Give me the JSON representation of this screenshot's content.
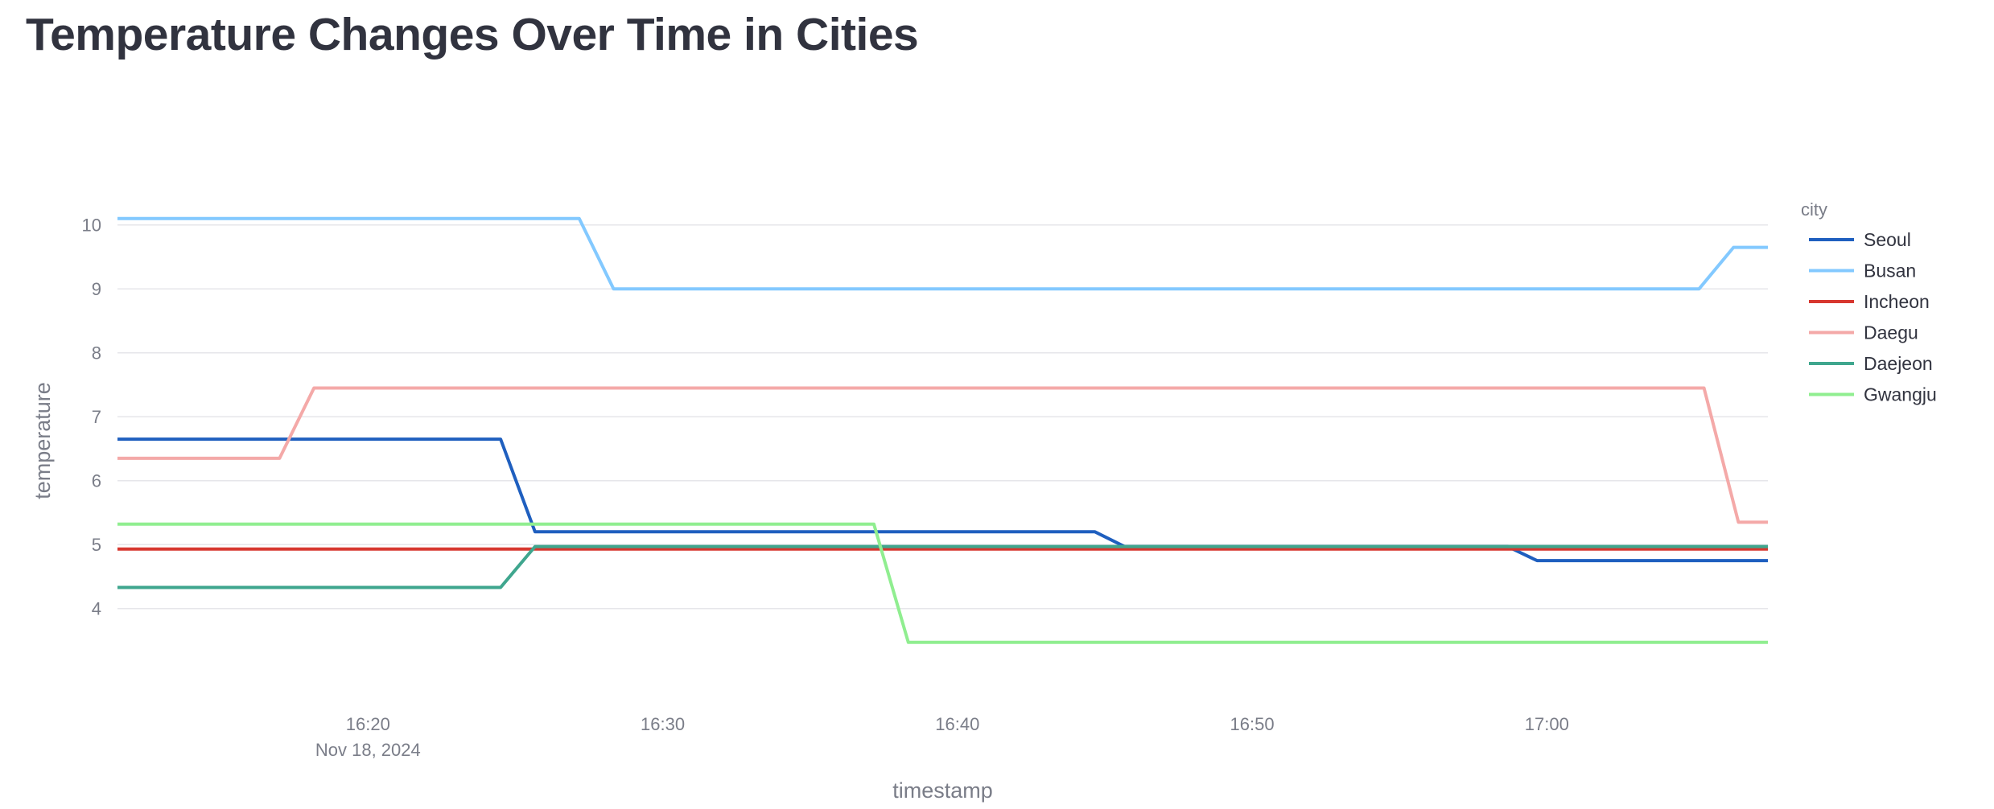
{
  "page": {
    "title": "Temperature Changes Over Time in Cities"
  },
  "chart_data": {
    "type": "line",
    "title": "Temperature Changes Over Time in Cities",
    "xlabel": "timestamp",
    "ylabel": "temperature",
    "x_axis_type": "time",
    "x_domain": [
      "2024-11-18T16:11:30",
      "2024-11-18T17:07:30"
    ],
    "x_ticks": [
      {
        "t": "2024-11-18T16:20",
        "label": "16:20",
        "sublabel": "Nov 18, 2024"
      },
      {
        "t": "2024-11-18T16:30",
        "label": "16:30",
        "sublabel": ""
      },
      {
        "t": "2024-11-18T16:40",
        "label": "16:40",
        "sublabel": ""
      },
      {
        "t": "2024-11-18T16:50",
        "label": "16:50",
        "sublabel": ""
      },
      {
        "t": "2024-11-18T17:00",
        "label": "17:00",
        "sublabel": ""
      }
    ],
    "ylim": [
      2.6,
      10.5
    ],
    "y_ticks": [
      4,
      5,
      6,
      7,
      8,
      9,
      10
    ],
    "grid": "horizontal",
    "legend": {
      "title": "city",
      "position": "right"
    },
    "series": [
      {
        "name": "Seoul",
        "color": "#1f5fbf",
        "x": [
          "16:11:30",
          "16:24:30",
          "16:25:40",
          "16:44:40",
          "16:45:40",
          "16:58:40",
          "16:59:40",
          "17:07:30"
        ],
        "y": [
          6.65,
          6.65,
          5.2,
          5.2,
          4.97,
          4.97,
          4.75,
          4.75
        ]
      },
      {
        "name": "Busan",
        "color": "#83c9ff",
        "x": [
          "16:11:30",
          "16:27:10",
          "16:28:20",
          "17:05:10",
          "17:06:20",
          "17:07:30"
        ],
        "y": [
          10.1,
          10.1,
          9.0,
          9.0,
          9.65,
          9.65
        ]
      },
      {
        "name": "Incheon",
        "color": "#d7372f",
        "x": [
          "16:11:30",
          "17:07:30"
        ],
        "y": [
          4.93,
          4.93
        ]
      },
      {
        "name": "Daegu",
        "color": "#f4a9a8",
        "x": [
          "16:11:30",
          "16:17:00",
          "16:18:10",
          "17:05:20",
          "17:06:30",
          "17:07:30"
        ],
        "y": [
          6.35,
          6.35,
          7.45,
          7.45,
          5.35,
          5.35
        ]
      },
      {
        "name": "Daejeon",
        "color": "#3fa68e",
        "x": [
          "16:11:30",
          "16:24:30",
          "16:25:40",
          "17:07:30"
        ],
        "y": [
          4.33,
          4.33,
          4.97,
          4.97
        ]
      },
      {
        "name": "Gwangju",
        "color": "#90ee90",
        "x": [
          "16:11:30",
          "16:37:10",
          "16:38:20",
          "17:07:30"
        ],
        "y": [
          5.32,
          5.32,
          3.47,
          3.47
        ]
      }
    ]
  }
}
